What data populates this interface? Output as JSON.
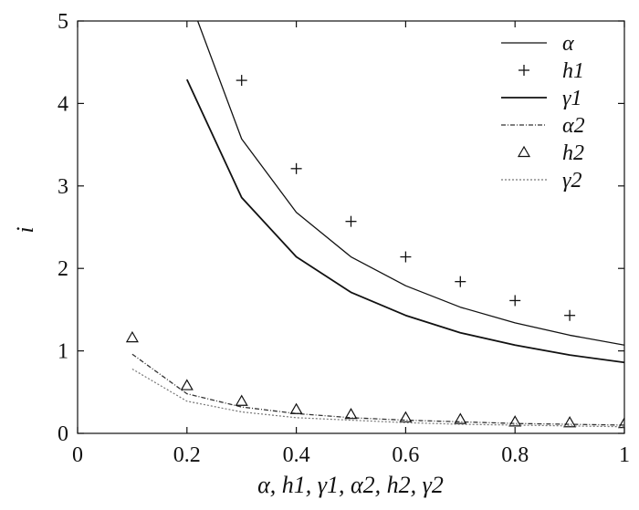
{
  "chart_data": {
    "type": "line",
    "title": "",
    "xlabel": "α, h1, γ1, α2, h2, γ2",
    "ylabel": "i",
    "xlim": [
      0,
      1
    ],
    "ylim": [
      0,
      5
    ],
    "xticks": [
      "0",
      "0.2",
      "0.4",
      "0.6",
      "0.8",
      "1"
    ],
    "yticks": [
      "0",
      "1",
      "2",
      "3",
      "4",
      "5"
    ],
    "grid": false,
    "legend_position": "top-right",
    "series": [
      {
        "name": "α",
        "style": "solid",
        "color": "#111111",
        "x": [
          0.2,
          0.3,
          0.4,
          0.5,
          0.6,
          0.7,
          0.8,
          0.9,
          1.0
        ],
        "y": [
          5.35,
          3.57,
          2.68,
          2.14,
          1.79,
          1.53,
          1.34,
          1.19,
          1.07
        ]
      },
      {
        "name": "h1",
        "style": "marker-plus",
        "color": "#111111",
        "x": [
          0.3,
          0.4,
          0.5,
          0.6,
          0.7,
          0.8,
          0.9
        ],
        "y": [
          4.28,
          3.21,
          2.57,
          2.14,
          1.84,
          1.61,
          1.43
        ]
      },
      {
        "name": "γ1",
        "style": "solid-thick",
        "color": "#111111",
        "x": [
          0.2,
          0.3,
          0.4,
          0.5,
          0.6,
          0.7,
          0.8,
          0.9,
          1.0
        ],
        "y": [
          4.29,
          2.86,
          2.14,
          1.71,
          1.43,
          1.22,
          1.07,
          0.95,
          0.86
        ]
      },
      {
        "name": "α2",
        "style": "dash-dot",
        "color": "#333333",
        "x": [
          0.1,
          0.2,
          0.3,
          0.4,
          0.5,
          0.6,
          0.7,
          0.8,
          0.9,
          1.0
        ],
        "y": [
          0.96,
          0.48,
          0.32,
          0.24,
          0.19,
          0.16,
          0.14,
          0.12,
          0.11,
          0.1
        ]
      },
      {
        "name": "h2",
        "style": "marker-triangle",
        "color": "#111111",
        "x": [
          0.1,
          0.2,
          0.3,
          0.4,
          0.5,
          0.6,
          0.7,
          0.8,
          0.9,
          1.0
        ],
        "y": [
          1.16,
          0.58,
          0.39,
          0.29,
          0.23,
          0.19,
          0.17,
          0.14,
          0.13,
          0.12
        ]
      },
      {
        "name": "γ2",
        "style": "dotted",
        "color": "#777777",
        "x": [
          0.1,
          0.2,
          0.3,
          0.4,
          0.5,
          0.6,
          0.7,
          0.8,
          0.9,
          1.0
        ],
        "y": [
          0.78,
          0.39,
          0.26,
          0.19,
          0.16,
          0.13,
          0.11,
          0.1,
          0.09,
          0.08
        ]
      }
    ]
  }
}
